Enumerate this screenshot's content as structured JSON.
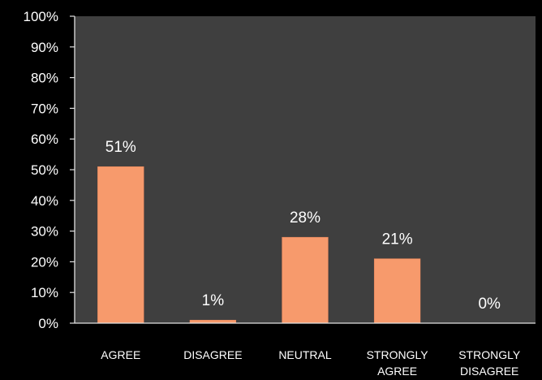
{
  "chart_data": {
    "type": "bar",
    "categories": [
      [
        "AGREE"
      ],
      [
        "DISAGREE"
      ],
      [
        "NEUTRAL"
      ],
      [
        "STRONGLY",
        "AGREE"
      ],
      [
        "STRONGLY",
        "DISAGREE"
      ]
    ],
    "values": [
      51,
      1,
      28,
      21,
      0
    ],
    "data_labels": [
      "51%",
      "1%",
      "28%",
      "21%",
      "0%"
    ],
    "y_ticks": [
      "0%",
      "10%",
      "20%",
      "30%",
      "40%",
      "50%",
      "60%",
      "70%",
      "80%",
      "90%",
      "100%"
    ],
    "ylim": [
      0,
      100
    ],
    "title": "",
    "xlabel": "",
    "ylabel": "",
    "grid": false,
    "colors": {
      "page_background": "#000000",
      "plot_background": "#3f3f3f",
      "bar": "#f79a6c",
      "bar_edge": "#e8865a",
      "axis": "#e0e0e0",
      "text": "#ffffff"
    }
  }
}
